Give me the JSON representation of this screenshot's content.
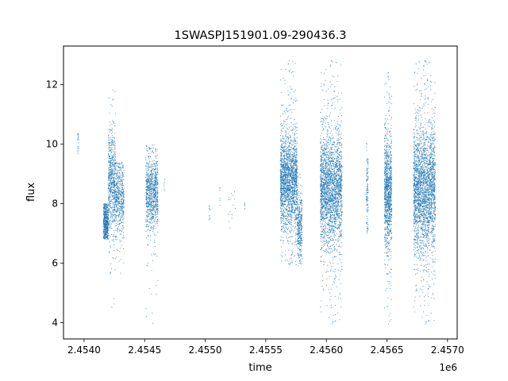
{
  "chart_data": {
    "type": "scatter",
    "title": "1SWASPJ151901.09-290436.3",
    "xlabel": "time",
    "ylabel": "flux",
    "x_offset_label": "1e6",
    "xlim": [
      2453830,
      2457080
    ],
    "ylim": [
      3.45,
      13.3
    ],
    "x_ticks": [
      2454000,
      2454500,
      2455000,
      2455500,
      2456000,
      2456500,
      2457000
    ],
    "x_tick_labels": [
      "2.4540",
      "2.4545",
      "2.4550",
      "2.4555",
      "2.4560",
      "2.4565",
      "2.4570"
    ],
    "y_ticks": [
      4,
      6,
      8,
      10,
      12
    ],
    "y_tick_labels": [
      "4",
      "6",
      "8",
      "10",
      "12"
    ],
    "grid": false,
    "legend": "none",
    "marker_color": "#1f77b4",
    "segments": [
      {
        "t0": 2453945,
        "t1": 2453955,
        "center": 10.0,
        "spread": 0.35,
        "min": 9.6,
        "max": 10.4,
        "n": 20
      },
      {
        "t0": 2454160,
        "t1": 2454200,
        "center": 7.35,
        "spread": 0.35,
        "min": 6.8,
        "max": 8.0,
        "n": 520
      },
      {
        "t0": 2454200,
        "t1": 2454260,
        "center": 8.7,
        "spread": 0.8,
        "min": 4.5,
        "max": 12.2,
        "n": 650
      },
      {
        "t0": 2454260,
        "t1": 2454330,
        "center": 8.2,
        "spread": 0.55,
        "min": 5.6,
        "max": 9.4,
        "n": 500
      },
      {
        "t0": 2454510,
        "t1": 2454610,
        "center": 8.4,
        "spread": 0.55,
        "min": 3.9,
        "max": 10.0,
        "n": 900
      },
      {
        "t0": 2454660,
        "t1": 2454670,
        "center": 8.6,
        "spread": 0.12,
        "min": 8.4,
        "max": 8.8,
        "n": 6
      },
      {
        "t0": 2455030,
        "t1": 2455040,
        "center": 7.7,
        "spread": 0.2,
        "min": 7.4,
        "max": 8.0,
        "n": 10
      },
      {
        "t0": 2455120,
        "t1": 2455125,
        "center": 8.2,
        "spread": 0.3,
        "min": 7.7,
        "max": 8.6,
        "n": 6
      },
      {
        "t0": 2455180,
        "t1": 2455250,
        "center": 8.0,
        "spread": 0.4,
        "min": 6.9,
        "max": 8.4,
        "n": 15
      },
      {
        "t0": 2455320,
        "t1": 2455330,
        "center": 8.0,
        "spread": 0.2,
        "min": 7.8,
        "max": 8.2,
        "n": 6
      },
      {
        "t0": 2455620,
        "t1": 2455760,
        "center": 8.8,
        "spread": 0.75,
        "min": 5.9,
        "max": 12.9,
        "n": 2000
      },
      {
        "t0": 2455760,
        "t1": 2455800,
        "center": 7.2,
        "spread": 0.5,
        "min": 5.9,
        "max": 9.0,
        "n": 350
      },
      {
        "t0": 2455950,
        "t1": 2456130,
        "center": 8.5,
        "spread": 0.9,
        "min": 3.9,
        "max": 12.9,
        "n": 2400
      },
      {
        "t0": 2456330,
        "t1": 2456345,
        "center": 8.4,
        "spread": 0.6,
        "min": 7.0,
        "max": 10.1,
        "n": 120
      },
      {
        "t0": 2456480,
        "t1": 2456540,
        "center": 8.4,
        "spread": 0.9,
        "min": 3.9,
        "max": 12.5,
        "n": 1100
      },
      {
        "t0": 2456720,
        "t1": 2456900,
        "center": 8.5,
        "spread": 1.0,
        "min": 3.9,
        "max": 12.9,
        "n": 2600
      }
    ]
  }
}
